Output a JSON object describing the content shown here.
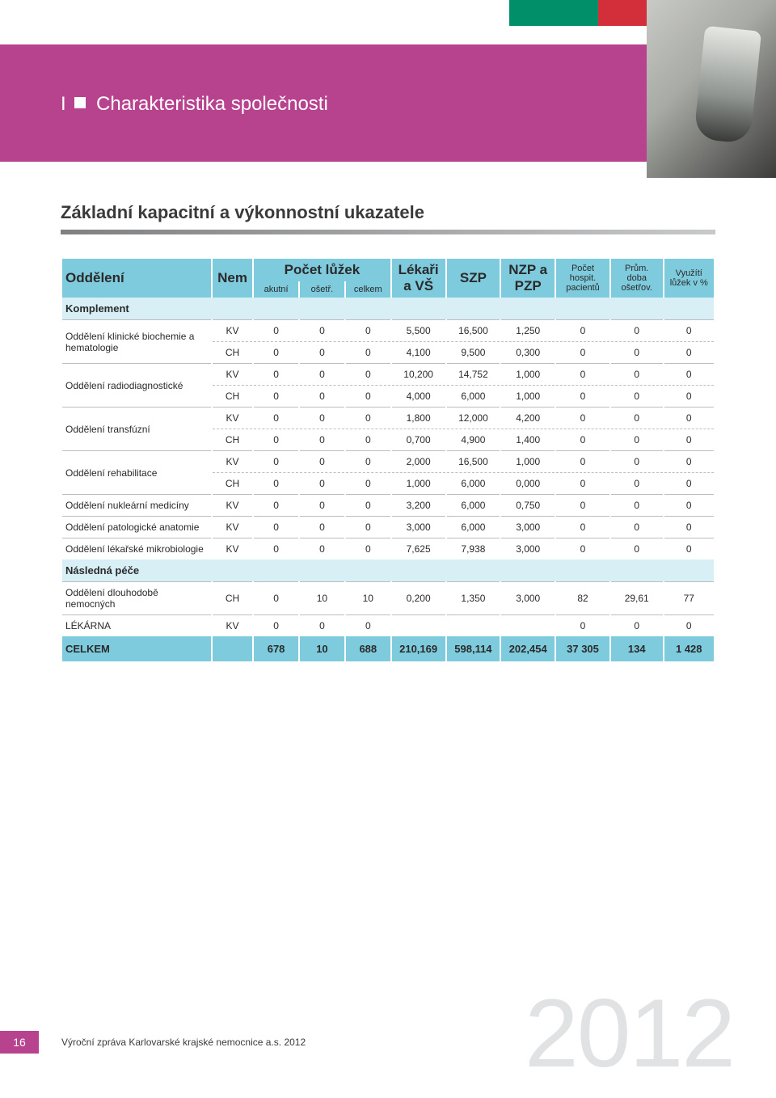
{
  "colors": {
    "bar1": "#008f68",
    "bar2": "#d22f3a",
    "bar3": "#c3cfa5",
    "header_band": "#b7438e",
    "table_header": "#7ecbde",
    "section_bg": "#d7eff5",
    "big_year": "#e1e2e4"
  },
  "header": {
    "prefix": "I",
    "title": "Charakteristika společnosti"
  },
  "subhead": "Základní kapacitní a výkonnostní ukazatele",
  "table": {
    "columns": {
      "dept": "Oddělení",
      "nem": "Nem",
      "beds_group": "Počet lůžek",
      "beds_akutni": "akutní",
      "beds_osetr": "ošetř.",
      "beds_celkem": "celkem",
      "lekari": "Lékaři a VŠ",
      "szp": "SZP",
      "nzp": "NZP a PZP",
      "pacientu": "Počet hospit. pacientů",
      "doba": "Prům. doba ošetřov.",
      "vyuziti": "Využítí lůžek v %"
    },
    "sections": [
      {
        "title": "Komplement",
        "rows": [
          {
            "name": "Oddělení klinické biochemie a hematologie",
            "span": 2,
            "sub": [
              {
                "nem": "KV",
                "v": [
                  "0",
                  "0",
                  "0",
                  "5,500",
                  "16,500",
                  "1,250",
                  "0",
                  "0",
                  "0"
                ]
              },
              {
                "nem": "CH",
                "v": [
                  "0",
                  "0",
                  "0",
                  "4,100",
                  "9,500",
                  "0,300",
                  "0",
                  "0",
                  "0"
                ]
              }
            ]
          },
          {
            "name": "Oddělení radiodiagnostické",
            "span": 2,
            "sub": [
              {
                "nem": "KV",
                "v": [
                  "0",
                  "0",
                  "0",
                  "10,200",
                  "14,752",
                  "1,000",
                  "0",
                  "0",
                  "0"
                ]
              },
              {
                "nem": "CH",
                "v": [
                  "0",
                  "0",
                  "0",
                  "4,000",
                  "6,000",
                  "1,000",
                  "0",
                  "0",
                  "0"
                ]
              }
            ]
          },
          {
            "name": "Oddělení transfúzní",
            "span": 2,
            "sub": [
              {
                "nem": "KV",
                "v": [
                  "0",
                  "0",
                  "0",
                  "1,800",
                  "12,000",
                  "4,200",
                  "0",
                  "0",
                  "0"
                ]
              },
              {
                "nem": "CH",
                "v": [
                  "0",
                  "0",
                  "0",
                  "0,700",
                  "4,900",
                  "1,400",
                  "0",
                  "0",
                  "0"
                ]
              }
            ]
          },
          {
            "name": "Oddělení rehabilitace",
            "span": 2,
            "sub": [
              {
                "nem": "KV",
                "v": [
                  "0",
                  "0",
                  "0",
                  "2,000",
                  "16,500",
                  "1,000",
                  "0",
                  "0",
                  "0"
                ]
              },
              {
                "nem": "CH",
                "v": [
                  "0",
                  "0",
                  "0",
                  "1,000",
                  "6,000",
                  "0,000",
                  "0",
                  "0",
                  "0"
                ]
              }
            ]
          },
          {
            "name": "Oddělení nukleární medicíny",
            "span": 1,
            "sub": [
              {
                "nem": "KV",
                "v": [
                  "0",
                  "0",
                  "0",
                  "3,200",
                  "6,000",
                  "0,750",
                  "0",
                  "0",
                  "0"
                ]
              }
            ]
          },
          {
            "name": "Oddělení patologické anatomie",
            "span": 1,
            "sub": [
              {
                "nem": "KV",
                "v": [
                  "0",
                  "0",
                  "0",
                  "3,000",
                  "6,000",
                  "3,000",
                  "0",
                  "0",
                  "0"
                ]
              }
            ]
          },
          {
            "name": "Oddělení lékařské mikrobiologie",
            "span": 1,
            "sub": [
              {
                "nem": "KV",
                "v": [
                  "0",
                  "0",
                  "0",
                  "7,625",
                  "7,938",
                  "3,000",
                  "0",
                  "0",
                  "0"
                ]
              }
            ]
          }
        ]
      },
      {
        "title": "Následná péče",
        "rows": [
          {
            "name": "Oddělení dlouhodobě nemocných",
            "span": 1,
            "sub": [
              {
                "nem": "CH",
                "v": [
                  "0",
                  "10",
                  "10",
                  "0,200",
                  "1,350",
                  "3,000",
                  "82",
                  "29,61",
                  "77"
                ]
              }
            ]
          },
          {
            "name": "LÉKÁRNA",
            "span": 1,
            "sub": [
              {
                "nem": "KV",
                "v": [
                  "0",
                  "0",
                  "0",
                  "",
                  "",
                  "",
                  "0",
                  "0",
                  "0"
                ]
              }
            ]
          }
        ]
      }
    ],
    "total": {
      "label": "CELKEM",
      "v": [
        "",
        "678",
        "10",
        "688",
        "210,169",
        "598,114",
        "202,454",
        "37 305",
        "134",
        "1 428"
      ]
    }
  },
  "footer": {
    "page": "16",
    "text": "Výroční zpráva Karlovarské krajské nemocnice a.s. 2012"
  },
  "big_year": "2012"
}
